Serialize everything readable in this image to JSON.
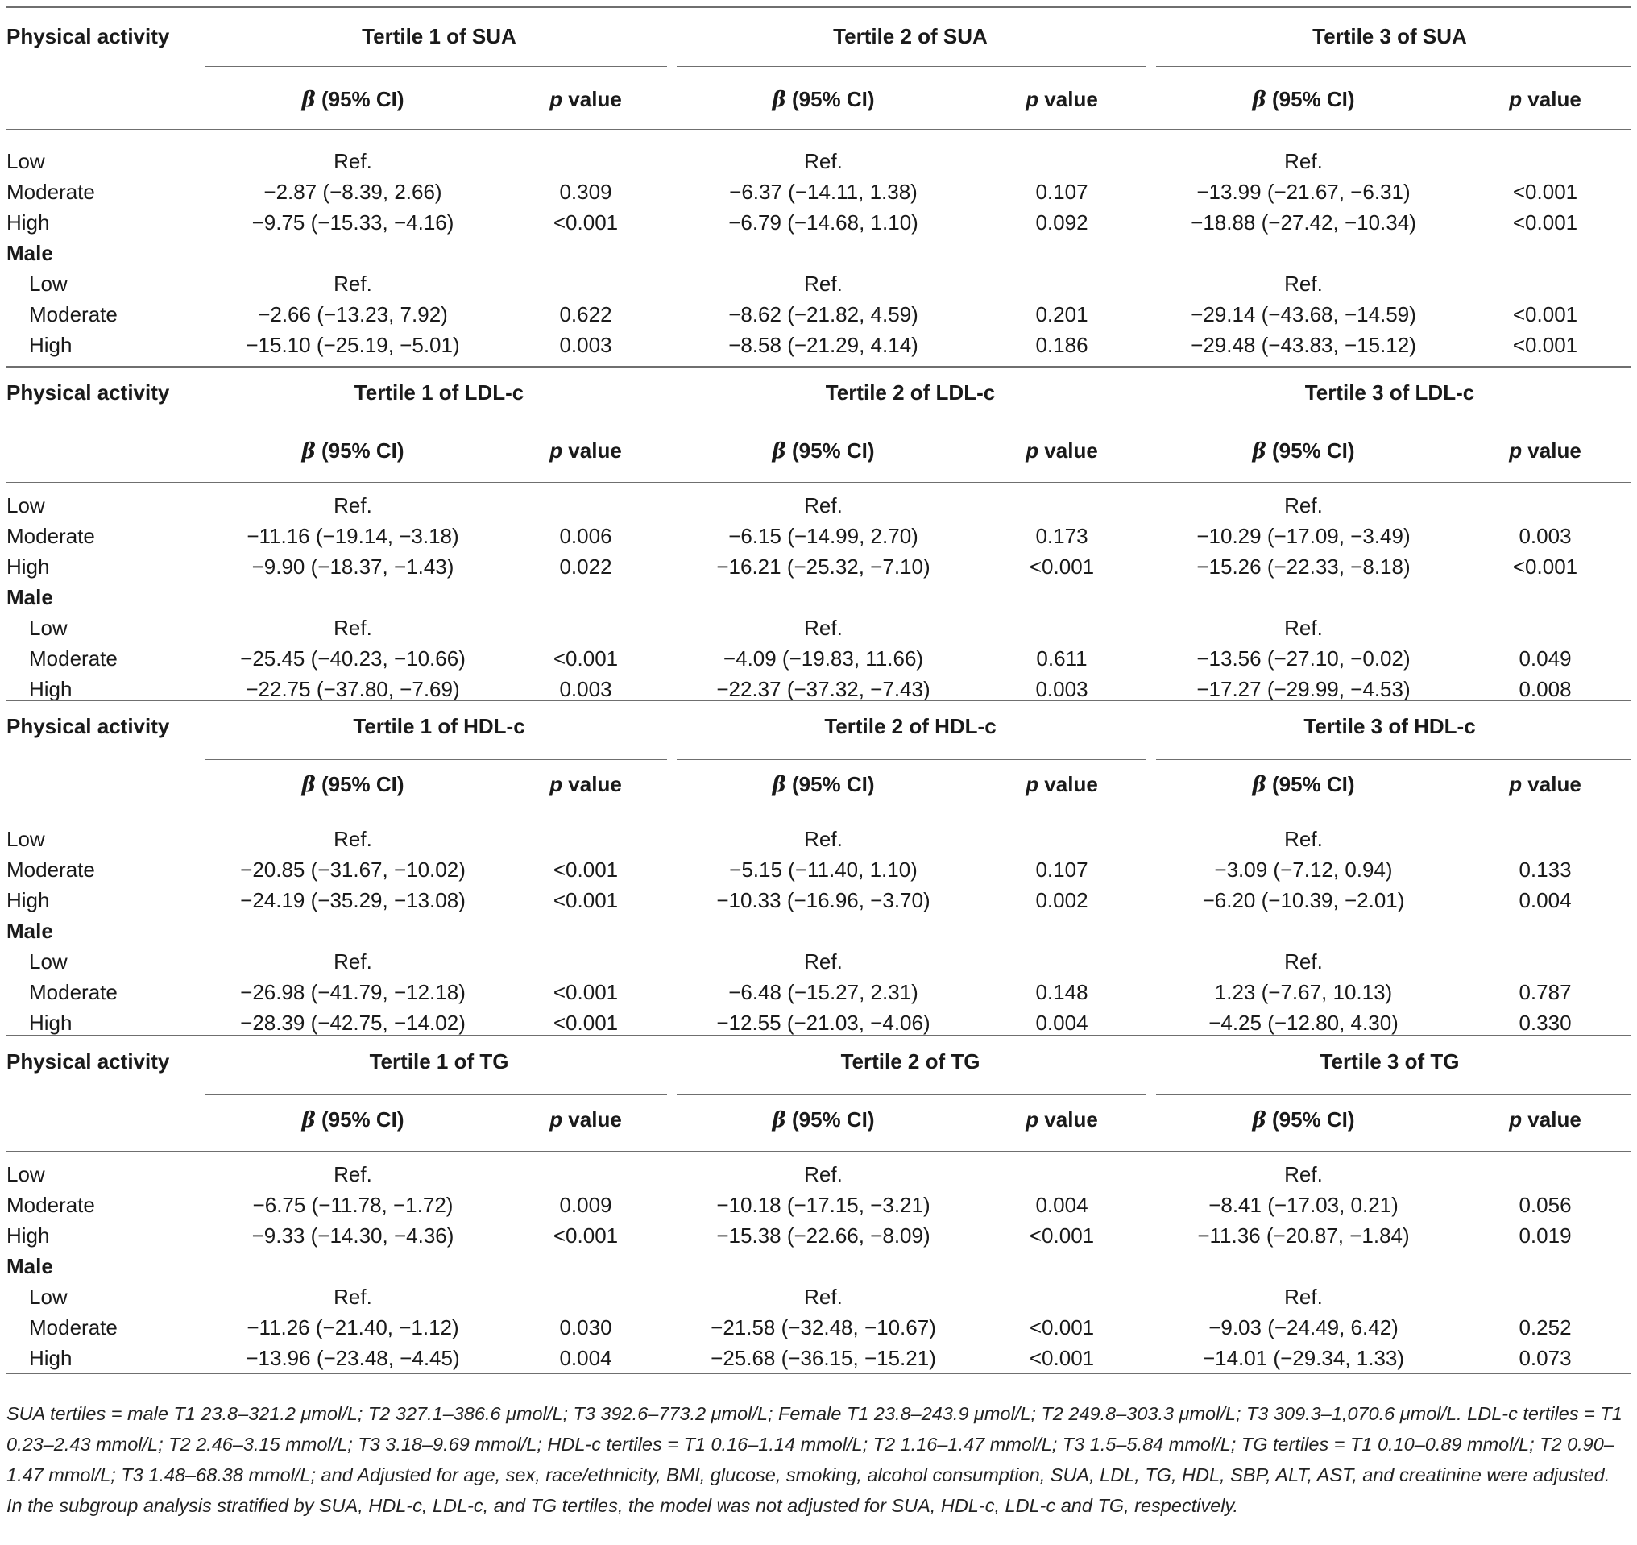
{
  "table": {
    "header_first": "Physical activity",
    "beta_symbol": "β",
    "beta_suffix": " (95% CI)",
    "p_italic": "p",
    "p_suffix": " value",
    "sections": [
      {
        "groups": [
          "Tertile 1 of SUA",
          "Tertile 2 of SUA",
          "Tertile 3 of SUA"
        ],
        "rows": [
          {
            "label": "Low",
            "indent": false,
            "bold": false,
            "cells": [
              "Ref.",
              "",
              "Ref.",
              "",
              "Ref.",
              ""
            ]
          },
          {
            "label": "Moderate",
            "indent": false,
            "bold": false,
            "cells": [
              "−2.87 (−8.39, 2.66)",
              "0.309",
              "−6.37 (−14.11, 1.38)",
              "0.107",
              "−13.99 (−21.67, −6.31)",
              "<0.001"
            ]
          },
          {
            "label": "High",
            "indent": false,
            "bold": false,
            "cells": [
              "−9.75 (−15.33, −4.16)",
              "<0.001",
              "−6.79 (−14.68, 1.10)",
              "0.092",
              "−18.88 (−27.42, −10.34)",
              "<0.001"
            ]
          },
          {
            "label": "Male",
            "indent": false,
            "bold": true,
            "cells": [
              "",
              "",
              "",
              "",
              "",
              ""
            ]
          },
          {
            "label": "Low",
            "indent": true,
            "bold": false,
            "cells": [
              "Ref.",
              "",
              "Ref.",
              "",
              "Ref.",
              ""
            ]
          },
          {
            "label": "Moderate",
            "indent": true,
            "bold": false,
            "cells": [
              "−2.66 (−13.23, 7.92)",
              "0.622",
              "−8.62 (−21.82, 4.59)",
              "0.201",
              "−29.14 (−43.68, −14.59)",
              "<0.001"
            ]
          },
          {
            "label": "High",
            "indent": true,
            "bold": false,
            "cells": [
              "−15.10 (−25.19, −5.01)",
              "0.003",
              "−8.58 (−21.29, 4.14)",
              "0.186",
              "−29.48 (−43.83, −15.12)",
              "<0.001"
            ]
          }
        ]
      },
      {
        "groups": [
          "Tertile 1 of LDL-c",
          "Tertile 2 of LDL-c",
          "Tertile 3 of LDL-c"
        ],
        "rows": [
          {
            "label": "Low",
            "indent": false,
            "bold": false,
            "cells": [
              "Ref.",
              "",
              "Ref.",
              "",
              "Ref.",
              ""
            ]
          },
          {
            "label": "Moderate",
            "indent": false,
            "bold": false,
            "cells": [
              "−11.16 (−19.14, −3.18)",
              "0.006",
              "−6.15 (−14.99, 2.70)",
              "0.173",
              "−10.29 (−17.09, −3.49)",
              "0.003"
            ]
          },
          {
            "label": "High",
            "indent": false,
            "bold": false,
            "cells": [
              "−9.90 (−18.37, −1.43)",
              "0.022",
              "−16.21 (−25.32, −7.10)",
              "<0.001",
              "−15.26 (−22.33, −8.18)",
              "<0.001"
            ]
          },
          {
            "label": "Male",
            "indent": false,
            "bold": true,
            "cells": [
              "",
              "",
              "",
              "",
              "",
              ""
            ]
          },
          {
            "label": "Low",
            "indent": true,
            "bold": false,
            "cells": [
              "Ref.",
              "",
              "Ref.",
              "",
              "Ref.",
              ""
            ]
          },
          {
            "label": "Moderate",
            "indent": true,
            "bold": false,
            "cells": [
              "−25.45 (−40.23, −10.66)",
              "<0.001",
              "−4.09 (−19.83, 11.66)",
              "0.611",
              "−13.56 (−27.10, −0.02)",
              "0.049"
            ]
          },
          {
            "label": "High",
            "indent": true,
            "bold": false,
            "cells": [
              "−22.75 (−37.80, −7.69)",
              "0.003",
              "−22.37 (−37.32, −7.43)",
              "0.003",
              "−17.27 (−29.99, −4.53)",
              "0.008"
            ]
          }
        ]
      },
      {
        "groups": [
          "Tertile 1 of HDL-c",
          "Tertile 2 of HDL-c",
          "Tertile 3 of HDL-c"
        ],
        "rows": [
          {
            "label": "Low",
            "indent": false,
            "bold": false,
            "cells": [
              "Ref.",
              "",
              "Ref.",
              "",
              "Ref.",
              ""
            ]
          },
          {
            "label": "Moderate",
            "indent": false,
            "bold": false,
            "cells": [
              "−20.85 (−31.67, −10.02)",
              "<0.001",
              "−5.15 (−11.40, 1.10)",
              "0.107",
              "−3.09 (−7.12, 0.94)",
              "0.133"
            ]
          },
          {
            "label": "High",
            "indent": false,
            "bold": false,
            "cells": [
              "−24.19 (−35.29, −13.08)",
              "<0.001",
              "−10.33 (−16.96, −3.70)",
              "0.002",
              "−6.20 (−10.39, −2.01)",
              "0.004"
            ]
          },
          {
            "label": "Male",
            "indent": false,
            "bold": true,
            "cells": [
              "",
              "",
              "",
              "",
              "",
              ""
            ]
          },
          {
            "label": "Low",
            "indent": true,
            "bold": false,
            "cells": [
              "Ref.",
              "",
              "Ref.",
              "",
              "Ref.",
              ""
            ]
          },
          {
            "label": "Moderate",
            "indent": true,
            "bold": false,
            "cells": [
              "−26.98 (−41.79, −12.18)",
              "<0.001",
              "−6.48 (−15.27, 2.31)",
              "0.148",
              "1.23 (−7.67, 10.13)",
              "0.787"
            ]
          },
          {
            "label": "High",
            "indent": true,
            "bold": false,
            "cells": [
              "−28.39 (−42.75, −14.02)",
              "<0.001",
              "−12.55 (−21.03, −4.06)",
              "0.004",
              "−4.25 (−12.80, 4.30)",
              "0.330"
            ]
          }
        ]
      },
      {
        "groups": [
          "Tertile 1 of TG",
          "Tertile 2 of TG",
          "Tertile 3 of TG"
        ],
        "rows": [
          {
            "label": "Low",
            "indent": false,
            "bold": false,
            "cells": [
              "Ref.",
              "",
              "Ref.",
              "",
              "Ref.",
              ""
            ]
          },
          {
            "label": "Moderate",
            "indent": false,
            "bold": false,
            "cells": [
              "−6.75 (−11.78, −1.72)",
              "0.009",
              "−10.18 (−17.15, −3.21)",
              "0.004",
              "−8.41 (−17.03, 0.21)",
              "0.056"
            ]
          },
          {
            "label": "High",
            "indent": false,
            "bold": false,
            "cells": [
              "−9.33 (−14.30, −4.36)",
              "<0.001",
              "−15.38 (−22.66, −8.09)",
              "<0.001",
              "−11.36 (−20.87, −1.84)",
              "0.019"
            ]
          },
          {
            "label": "Male",
            "indent": false,
            "bold": true,
            "cells": [
              "",
              "",
              "",
              "",
              "",
              ""
            ]
          },
          {
            "label": "Low",
            "indent": true,
            "bold": false,
            "cells": [
              "Ref.",
              "",
              "Ref.",
              "",
              "Ref.",
              ""
            ]
          },
          {
            "label": "Moderate",
            "indent": true,
            "bold": false,
            "cells": [
              "−11.26 (−21.40, −1.12)",
              "0.030",
              "−21.58 (−32.48, −10.67)",
              "<0.001",
              "−9.03 (−24.49, 6.42)",
              "0.252"
            ]
          },
          {
            "label": "High",
            "indent": true,
            "bold": false,
            "cells": [
              "−13.96 (−23.48, −4.45)",
              "0.004",
              "−25.68 (−36.15, −15.21)",
              "<0.001",
              "−14.01 (−29.34, 1.33)",
              "0.073"
            ]
          }
        ]
      }
    ]
  },
  "footnote": "SUA tertiles = male T1 23.8–321.2 μmol/L; T2 327.1–386.6 μmol/L; T3 392.6–773.2 μmol/L; Female T1 23.8–243.9 μmol/L; T2 249.8–303.3 μmol/L; T3 309.3–1,070.6 μmol/L. LDL-c tertiles = T1 0.23–2.43 mmol/L; T2 2.46–3.15 mmol/L; T3 3.18–9.69 mmol/L; HDL-c tertiles = T1 0.16–1.14 mmol/L; T2 1.16–1.47 mmol/L; T3 1.5–5.84 mmol/L; TG tertiles = T1 0.10–0.89 mmol/L; T2 0.90–1.47 mmol/L; T3 1.48–68.38 mmol/L; and Adjusted for age, sex, race/ethnicity, BMI, glucose, smoking, alcohol consumption, SUA, LDL, TG, HDL, SBP, ALT, AST, and creatinine were adjusted. In the subgroup analysis stratified by SUA, HDL-c, LDL-c, and TG tertiles, the model was not adjusted for SUA, HDL-c, LDL-c and TG, respectively."
}
